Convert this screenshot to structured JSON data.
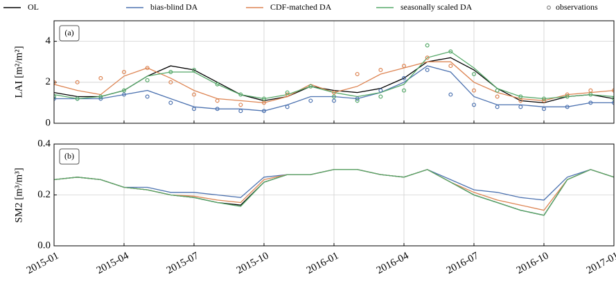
{
  "chart_data": [
    {
      "type": "line",
      "panel_label": "(a)",
      "ylabel": "LAI [m²/m²]",
      "x": [
        "2015-01",
        "2015-02",
        "2015-03",
        "2015-04",
        "2015-05",
        "2015-06",
        "2015-07",
        "2015-08",
        "2015-09",
        "2015-10",
        "2015-11",
        "2015-12",
        "2016-01",
        "2016-02",
        "2016-03",
        "2016-04",
        "2016-05",
        "2016-06",
        "2016-07",
        "2016-08",
        "2016-09",
        "2016-10",
        "2016-11",
        "2016-12",
        "2017-01"
      ],
      "xlim": [
        "2015-01",
        "2017-01"
      ],
      "ylim": [
        0,
        5
      ],
      "yticks": [
        0,
        2,
        4
      ],
      "grid": true,
      "legend": "top-outside",
      "series": [
        {
          "name": "OL",
          "color": "#000000",
          "values": [
            1.5,
            1.3,
            1.3,
            1.6,
            2.3,
            2.8,
            2.6,
            2.0,
            1.4,
            1.1,
            1.3,
            1.8,
            1.6,
            1.5,
            1.7,
            2.2,
            3.0,
            3.2,
            2.6,
            1.7,
            1.1,
            1.0,
            1.3,
            1.4,
            1.2
          ]
        },
        {
          "name": "bias-blind DA",
          "color": "#4c72b0",
          "values": [
            1.2,
            1.2,
            1.2,
            1.4,
            1.6,
            1.2,
            0.8,
            0.7,
            0.7,
            0.6,
            0.9,
            1.3,
            1.3,
            1.2,
            1.5,
            2.0,
            2.8,
            2.5,
            1.3,
            0.9,
            0.9,
            0.8,
            0.8,
            1.0,
            1.0
          ]
        },
        {
          "name": "CDF-matched DA",
          "color": "#dd8452",
          "values": [
            1.9,
            1.6,
            1.4,
            2.3,
            2.7,
            2.2,
            1.6,
            1.2,
            1.1,
            1.0,
            1.3,
            1.9,
            1.5,
            1.8,
            2.4,
            2.7,
            3.0,
            3.0,
            2.0,
            1.5,
            1.2,
            1.1,
            1.4,
            1.5,
            1.6
          ]
        },
        {
          "name": "seasonally scaled DA",
          "color": "#55a868",
          "values": [
            1.4,
            1.2,
            1.3,
            1.6,
            2.3,
            2.5,
            2.5,
            1.9,
            1.4,
            1.2,
            1.4,
            1.8,
            1.5,
            1.3,
            1.5,
            1.9,
            3.2,
            3.5,
            2.7,
            1.7,
            1.3,
            1.2,
            1.3,
            1.4,
            1.3
          ]
        },
        {
          "name": "observations",
          "color": "#888888",
          "mode": "markers",
          "groups": [
            {
              "color": "#4c72b0",
              "values": [
                1.2,
                1.2,
                1.2,
                1.4,
                1.3,
                1.0,
                0.7,
                0.7,
                0.6,
                0.6,
                0.8,
                1.1,
                1.1,
                1.2,
                1.6,
                2.2,
                2.6,
                1.4,
                0.9,
                0.8,
                0.8,
                0.7,
                0.8,
                1.0,
                1.0
              ]
            },
            {
              "color": "#dd8452",
              "values": [
                2.0,
                2.0,
                2.2,
                2.5,
                2.7,
                2.0,
                1.4,
                1.1,
                0.9,
                1.0,
                1.4,
                1.8,
                1.5,
                2.4,
                2.6,
                2.8,
                3.2,
                2.8,
                1.6,
                1.3,
                1.1,
                1.1,
                1.4,
                1.6,
                1.6
              ]
            },
            {
              "color": "#55a868",
              "values": [
                1.3,
                1.2,
                1.3,
                1.6,
                2.1,
                2.5,
                2.6,
                1.9,
                1.4,
                1.2,
                1.5,
                1.8,
                1.3,
                1.1,
                1.3,
                1.6,
                3.8,
                3.5,
                2.4,
                1.6,
                1.3,
                1.2,
                1.3,
                1.4,
                1.2
              ]
            }
          ]
        }
      ]
    },
    {
      "type": "line",
      "panel_label": "(b)",
      "ylabel": "SM2 [m³/m³]",
      "x": [
        "2015-01",
        "2015-02",
        "2015-03",
        "2015-04",
        "2015-05",
        "2015-06",
        "2015-07",
        "2015-08",
        "2015-09",
        "2015-10",
        "2015-11",
        "2015-12",
        "2016-01",
        "2016-02",
        "2016-03",
        "2016-04",
        "2016-05",
        "2016-06",
        "2016-07",
        "2016-08",
        "2016-09",
        "2016-10",
        "2016-11",
        "2016-12",
        "2017-01"
      ],
      "xlim": [
        "2015-01",
        "2017-01"
      ],
      "xticks": [
        "2015-01",
        "2015-04",
        "2015-07",
        "2015-10",
        "2016-01",
        "2016-04",
        "2016-07",
        "2016-10",
        "2017-01"
      ],
      "ylim": [
        0,
        0.4
      ],
      "yticks": [
        {
          "value": 0,
          "label": "0.0"
        },
        {
          "value": 0.2,
          "label": "0.2"
        },
        {
          "value": 0.4,
          "label": "0.4"
        }
      ],
      "grid": true,
      "series": [
        {
          "color": "#000000",
          "values": [
            0.26,
            0.27,
            0.26,
            0.23,
            0.22,
            0.2,
            0.19,
            0.17,
            0.16,
            0.25,
            0.28,
            0.28,
            0.3,
            0.3,
            0.28,
            0.27,
            0.3,
            0.25,
            0.2,
            0.17,
            0.14,
            0.12,
            0.26,
            0.3,
            0.27
          ]
        },
        {
          "color": "#4c72b0",
          "values": [
            0.26,
            0.27,
            0.26,
            0.23,
            0.23,
            0.21,
            0.21,
            0.2,
            0.19,
            0.27,
            0.28,
            0.28,
            0.3,
            0.3,
            0.28,
            0.27,
            0.3,
            0.26,
            0.22,
            0.21,
            0.19,
            0.18,
            0.27,
            0.3,
            0.27
          ]
        },
        {
          "color": "#dd8452",
          "values": [
            0.26,
            0.27,
            0.26,
            0.23,
            0.22,
            0.2,
            0.195,
            0.18,
            0.17,
            0.26,
            0.28,
            0.28,
            0.3,
            0.3,
            0.28,
            0.27,
            0.3,
            0.25,
            0.21,
            0.18,
            0.16,
            0.14,
            0.26,
            0.3,
            0.27
          ]
        },
        {
          "color": "#55a868",
          "values": [
            0.26,
            0.27,
            0.26,
            0.23,
            0.22,
            0.2,
            0.19,
            0.17,
            0.155,
            0.25,
            0.28,
            0.28,
            0.3,
            0.3,
            0.28,
            0.27,
            0.3,
            0.25,
            0.2,
            0.17,
            0.14,
            0.12,
            0.26,
            0.3,
            0.27
          ]
        }
      ]
    }
  ]
}
